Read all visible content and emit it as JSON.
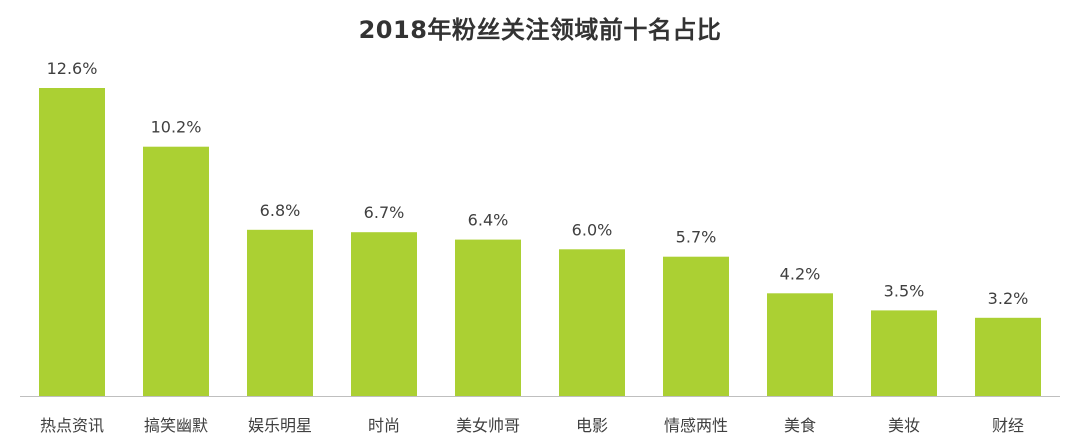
{
  "chart_data": {
    "type": "bar",
    "title": "2018年粉丝关注领域前十名占比",
    "xlabel": "",
    "ylabel": "",
    "categories": [
      "热点资讯",
      "搞笑幽默",
      "娱乐明星",
      "时尚",
      "美女帅哥",
      "电影",
      "情感两性",
      "美食",
      "美妆",
      "财经"
    ],
    "values": [
      12.6,
      10.2,
      6.8,
      6.7,
      6.4,
      6.0,
      5.7,
      4.2,
      3.5,
      3.2
    ],
    "value_labels": [
      "12.6%",
      "10.2%",
      "6.8%",
      "6.7%",
      "6.4%",
      "6.0%",
      "5.7%",
      "4.2%",
      "3.5%",
      "3.2%"
    ],
    "unit": "%",
    "ylim": [
      0,
      12.6
    ],
    "grid": false,
    "legend": "none",
    "colors": {
      "bar": "#abd033",
      "axis": "#bfbfbf",
      "text": "#404040",
      "title": "#333333"
    }
  }
}
